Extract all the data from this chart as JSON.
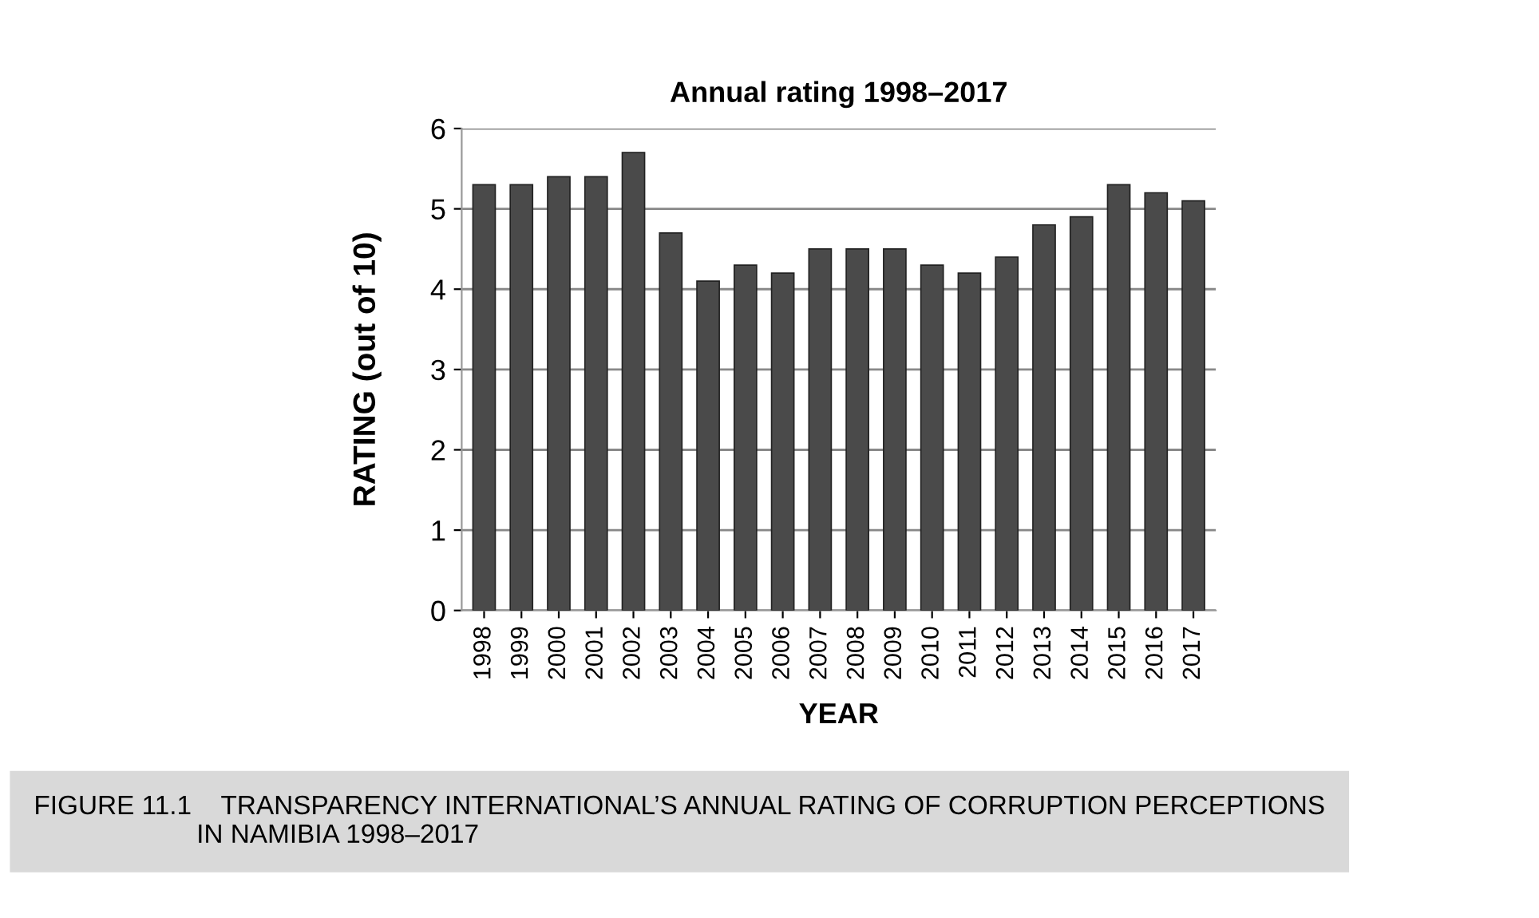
{
  "chart_data": {
    "type": "bar",
    "title": "Annual rating 1998–2017",
    "xlabel": "YEAR",
    "ylabel": "RATING (out of 10)",
    "categories": [
      "1998",
      "1999",
      "2000",
      "2001",
      "2002",
      "2003",
      "2004",
      "2005",
      "2006",
      "2007",
      "2008",
      "2009",
      "2010",
      "2011",
      "2012",
      "2013",
      "2014",
      "2015",
      "2016",
      "2017"
    ],
    "values": [
      5.3,
      5.3,
      5.4,
      5.4,
      5.7,
      4.7,
      4.1,
      4.3,
      4.2,
      4.5,
      4.5,
      4.5,
      4.3,
      4.2,
      4.4,
      4.8,
      4.9,
      5.3,
      5.2,
      5.1
    ],
    "color": "#4a4a4a",
    "ylim": [
      0,
      6
    ],
    "yticks": [
      0,
      1,
      2,
      3,
      4,
      5,
      6
    ],
    "grid": "y",
    "annotations": [
      "FIGURE 11.1    TRANSPARENCY INTERNATIONAL’S ANNUAL RATING OF CORRUPTION PERCEPTIONS\n                      IN NAMIBIA 1998–2017"
    ]
  }
}
